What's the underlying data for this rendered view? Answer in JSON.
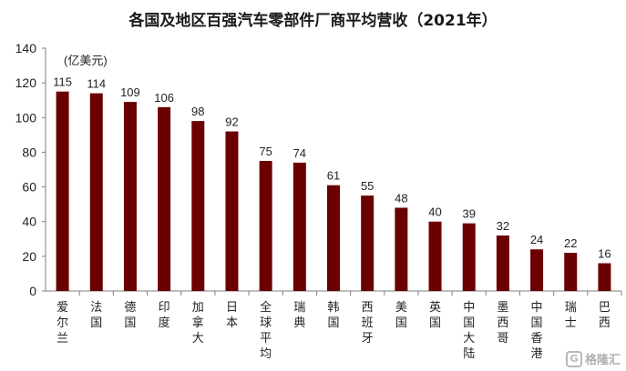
{
  "chart_data": {
    "type": "bar",
    "title": "各国及地区百强汽车零部件厂商平均营收（2021年）",
    "unit_label": "(亿美元)",
    "categories": [
      "爱尔兰",
      "法国",
      "德国",
      "印度",
      "加拿大",
      "日本",
      "全球平均",
      "瑞典",
      "韩国",
      "西班牙",
      "美国",
      "英国",
      "中国大陆",
      "墨西哥",
      "中国香港",
      "瑞士",
      "巴西"
    ],
    "values": [
      115,
      114,
      109,
      106,
      98,
      92,
      75,
      74,
      61,
      55,
      48,
      40,
      39,
      32,
      24,
      22,
      16
    ],
    "ylim": [
      0,
      140
    ],
    "yticks": [
      0,
      20,
      40,
      60,
      80,
      100,
      120,
      140
    ],
    "bar_color": "#6b0000",
    "grid": false,
    "legend": "none"
  },
  "watermark": {
    "logo_glyph": "G",
    "text": "格隆汇"
  }
}
